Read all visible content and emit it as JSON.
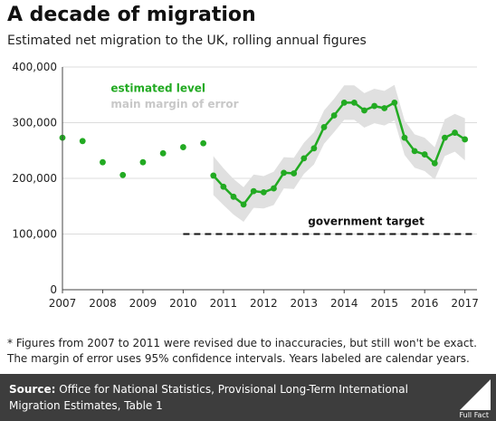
{
  "header": {
    "title": "A decade of migration",
    "subtitle": "Estimated net migration to the UK, rolling annual figures"
  },
  "footnote": "* Figures from 2007 to 2011 were revised due to inaccuracies, but still won't be exact. The margin of error uses 95% confidence intervals. Years labeled are calendar years.",
  "footer": {
    "source_label": "Source:",
    "source_text": "Office for National Statistics, Provisional Long-Term International Migration Estimates, Table 1",
    "logo_text": "Full Fact"
  },
  "colors": {
    "series": "#22aa22",
    "band": "#e0e0e0",
    "band_label": "#c8c8c8",
    "target": "#111111",
    "footer_bg": "#3d3d3d"
  },
  "chart_data": {
    "type": "line",
    "xlim": [
      2007,
      2017.3
    ],
    "ylim": [
      0,
      400000
    ],
    "x_ticks": [
      "2007",
      "2008",
      "2009",
      "2010",
      "2011",
      "2012",
      "2013",
      "2014",
      "2015",
      "2016",
      "2017"
    ],
    "y_ticks": [
      "0",
      "100,000",
      "200,000",
      "300,000",
      "400,000"
    ],
    "grid": "horizontal",
    "legend": {
      "estimated_level": "estimated level",
      "margin": "main margin of error"
    },
    "target": {
      "label": "government target",
      "value": 100000,
      "x_start": 2010.0,
      "x_end": 2017.2
    },
    "revised_points": [
      {
        "x": 2007.0,
        "y": 273000
      },
      {
        "x": 2007.5,
        "y": 267000
      },
      {
        "x": 2008.0,
        "y": 229000
      },
      {
        "x": 2008.5,
        "y": 206000
      },
      {
        "x": 2009.0,
        "y": 229000
      },
      {
        "x": 2009.5,
        "y": 245000
      },
      {
        "x": 2010.0,
        "y": 256000
      },
      {
        "x": 2010.5,
        "y": 263000
      }
    ],
    "series": [
      {
        "points": [
          {
            "x": 2010.75,
            "y": 205000,
            "lo": 170000,
            "hi": 240000
          },
          {
            "x": 2011.0,
            "y": 185000,
            "lo": 152000,
            "hi": 218000
          },
          {
            "x": 2011.25,
            "y": 167000,
            "lo": 135000,
            "hi": 199000
          },
          {
            "x": 2011.5,
            "y": 153000,
            "lo": 122000,
            "hi": 184000
          },
          {
            "x": 2011.75,
            "y": 177000,
            "lo": 147000,
            "hi": 207000
          },
          {
            "x": 2012.0,
            "y": 175000,
            "lo": 146000,
            "hi": 204000
          },
          {
            "x": 2012.25,
            "y": 182000,
            "lo": 152000,
            "hi": 212000
          },
          {
            "x": 2012.5,
            "y": 210000,
            "lo": 182000,
            "hi": 238000
          },
          {
            "x": 2012.75,
            "y": 209000,
            "lo": 181000,
            "hi": 237000
          },
          {
            "x": 2013.0,
            "y": 236000,
            "lo": 208000,
            "hi": 264000
          },
          {
            "x": 2013.25,
            "y": 254000,
            "lo": 225000,
            "hi": 283000
          },
          {
            "x": 2013.5,
            "y": 292000,
            "lo": 262000,
            "hi": 322000
          },
          {
            "x": 2013.75,
            "y": 313000,
            "lo": 283000,
            "hi": 343000
          },
          {
            "x": 2014.0,
            "y": 336000,
            "lo": 305000,
            "hi": 367000
          },
          {
            "x": 2014.25,
            "y": 336000,
            "lo": 305000,
            "hi": 367000
          },
          {
            "x": 2014.5,
            "y": 322000,
            "lo": 291000,
            "hi": 353000
          },
          {
            "x": 2014.75,
            "y": 330000,
            "lo": 299000,
            "hi": 361000
          },
          {
            "x": 2015.0,
            "y": 326000,
            "lo": 295000,
            "hi": 357000
          },
          {
            "x": 2015.25,
            "y": 336000,
            "lo": 304000,
            "hi": 368000
          },
          {
            "x": 2015.5,
            "y": 273000,
            "lo": 242000,
            "hi": 304000
          },
          {
            "x": 2015.75,
            "y": 249000,
            "lo": 219000,
            "hi": 279000
          },
          {
            "x": 2016.0,
            "y": 243000,
            "lo": 213000,
            "hi": 273000
          },
          {
            "x": 2016.25,
            "y": 227000,
            "lo": 198000,
            "hi": 256000
          },
          {
            "x": 2016.5,
            "y": 273000,
            "lo": 240000,
            "hi": 306000
          },
          {
            "x": 2016.75,
            "y": 282000,
            "lo": 248000,
            "hi": 316000
          },
          {
            "x": 2017.0,
            "y": 270000,
            "lo": 232000,
            "hi": 308000
          }
        ]
      }
    ]
  }
}
